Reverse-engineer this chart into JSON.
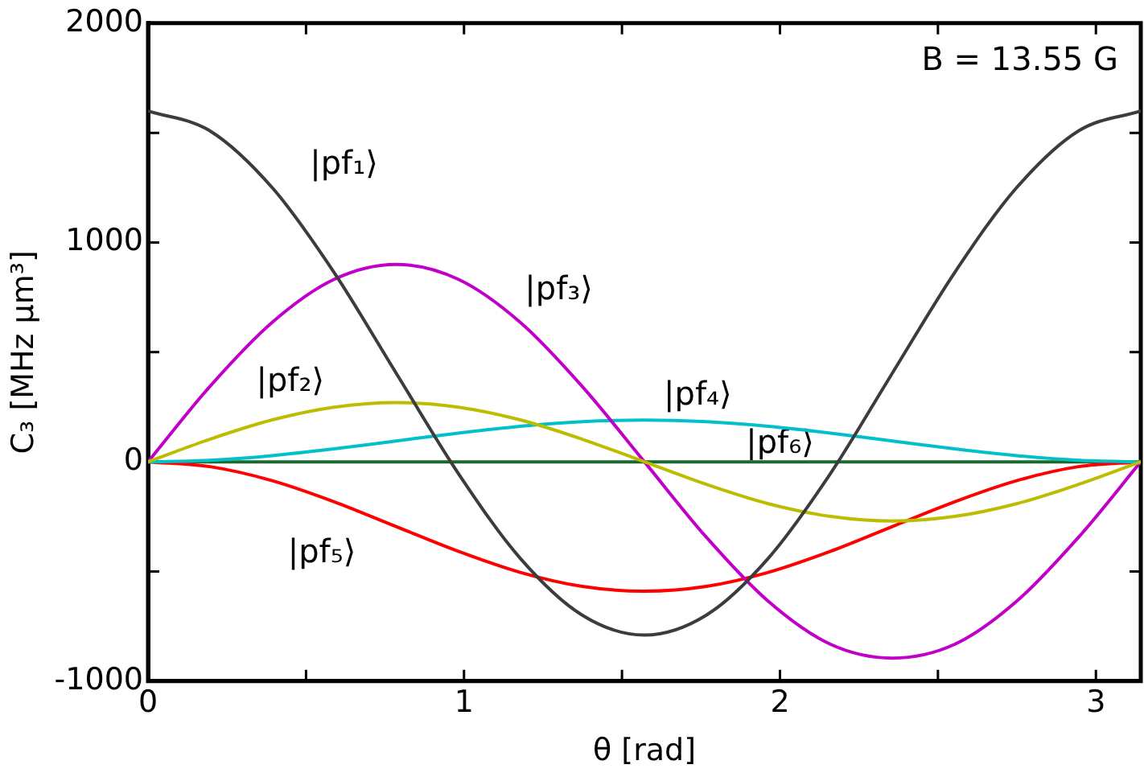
{
  "chart_data": {
    "type": "line",
    "xlabel": "θ [rad]",
    "ylabel": "C₃ [MHz µm³]",
    "annotations": [
      "B = 13.55 G"
    ],
    "x": [
      0,
      0.196,
      0.393,
      0.589,
      0.785,
      0.982,
      1.178,
      1.374,
      1.571,
      1.767,
      1.963,
      2.16,
      2.356,
      2.553,
      2.749,
      2.945,
      3.142
    ],
    "xlim": [
      0,
      3.142
    ],
    "xticks": [
      0,
      {
        "value": 0.5,
        "label": null
      },
      1,
      {
        "value": 1.5,
        "label": null
      },
      2,
      {
        "value": 2.5,
        "label": null
      },
      3
    ],
    "ylim": [
      -1000,
      2000
    ],
    "yticks": [
      -1000,
      {
        "value": -500,
        "label": null
      },
      0,
      {
        "value": 500,
        "label": null
      },
      1000,
      {
        "value": 1500,
        "label": null
      },
      2000
    ],
    "grid": false,
    "legend": false,
    "marker": "none",
    "line_style": "solid",
    "series": [
      {
        "name": "|pf₁⟩",
        "color": "#3c3c3c",
        "values": [
          1600,
          1509,
          1250,
          863,
          405,
          -53,
          -440,
          -699,
          -790,
          -699,
          -440,
          -53,
          405,
          863,
          1250,
          1509,
          1600
        ]
      },
      {
        "name": "|pf₂⟩",
        "color": "#bcbc00",
        "values": [
          0,
          103,
          191,
          249,
          270,
          249,
          191,
          103,
          0,
          -103,
          -191,
          -249,
          -270,
          -249,
          -191,
          -103,
          0
        ]
      },
      {
        "name": "|pf₃⟩",
        "color": "#c000c8",
        "values": [
          0,
          344,
          636,
          832,
          900,
          832,
          636,
          344,
          0,
          -344,
          -636,
          -832,
          -895,
          -832,
          -636,
          -344,
          0
        ]
      },
      {
        "name": "|pf₄⟩",
        "color": "#00c0c8",
        "values": [
          0,
          7,
          28,
          59,
          95,
          131,
          162,
          183,
          190,
          183,
          162,
          131,
          95,
          59,
          28,
          7,
          0
        ]
      },
      {
        "name": "|pf₅⟩",
        "color": "#ff0000",
        "values": [
          0,
          -22,
          -86,
          -182,
          -295,
          -408,
          -504,
          -568,
          -590,
          -568,
          -504,
          -408,
          -295,
          -182,
          -86,
          -22,
          0
        ]
      },
      {
        "name": "|pf₆⟩",
        "color": "#1a6a30",
        "values": [
          0,
          0,
          0,
          0,
          0,
          0,
          0,
          0,
          0,
          0,
          0,
          0,
          0,
          0,
          0,
          0,
          0
        ]
      }
    ]
  }
}
